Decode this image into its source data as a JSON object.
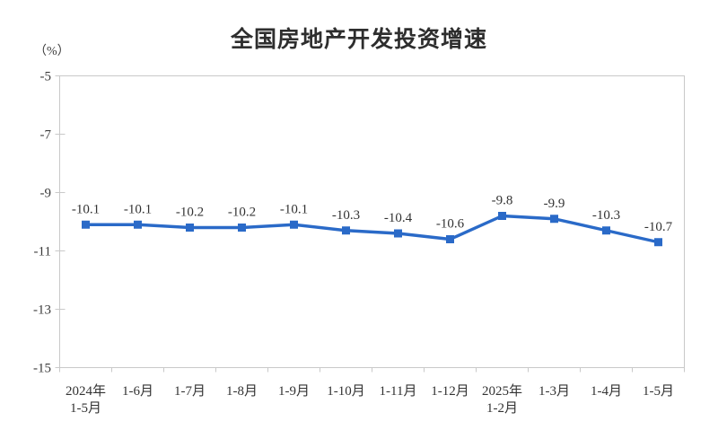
{
  "chart_data": {
    "type": "line",
    "title": "全国房地产开发投资增速",
    "ylabel_unit": "（%）",
    "categories": [
      [
        "2024年",
        "1-5月"
      ],
      [
        "1-6月"
      ],
      [
        "1-7月"
      ],
      [
        "1-8月"
      ],
      [
        "1-9月"
      ],
      [
        "1-10月"
      ],
      [
        "1-11月"
      ],
      [
        "1-12月"
      ],
      [
        "2025年",
        "1-2月"
      ],
      [
        "1-3月"
      ],
      [
        "1-4月"
      ],
      [
        "1-5月"
      ]
    ],
    "values": [
      -10.1,
      -10.1,
      -10.2,
      -10.2,
      -10.1,
      -10.3,
      -10.4,
      -10.6,
      -9.8,
      -9.9,
      -10.3,
      -10.7
    ],
    "point_labels": [
      "-10.1",
      "-10.1",
      "-10.2",
      "-10.2",
      "-10.1",
      "-10.3",
      "-10.4",
      "-10.6",
      "-9.8",
      "-9.9",
      "-10.3",
      "-10.7"
    ],
    "yticks": [
      -5,
      -7,
      -9,
      -11,
      -13,
      -15
    ],
    "ytick_labels": [
      "-5",
      "-7",
      "-9",
      "-11",
      "-13",
      "-15"
    ],
    "ylim": [
      -15,
      -5
    ],
    "grid": false,
    "legend": "none",
    "line_color": "#2a6ac8",
    "marker": "square",
    "axis_color": "#c9c9c9",
    "text_color": "#333333"
  }
}
